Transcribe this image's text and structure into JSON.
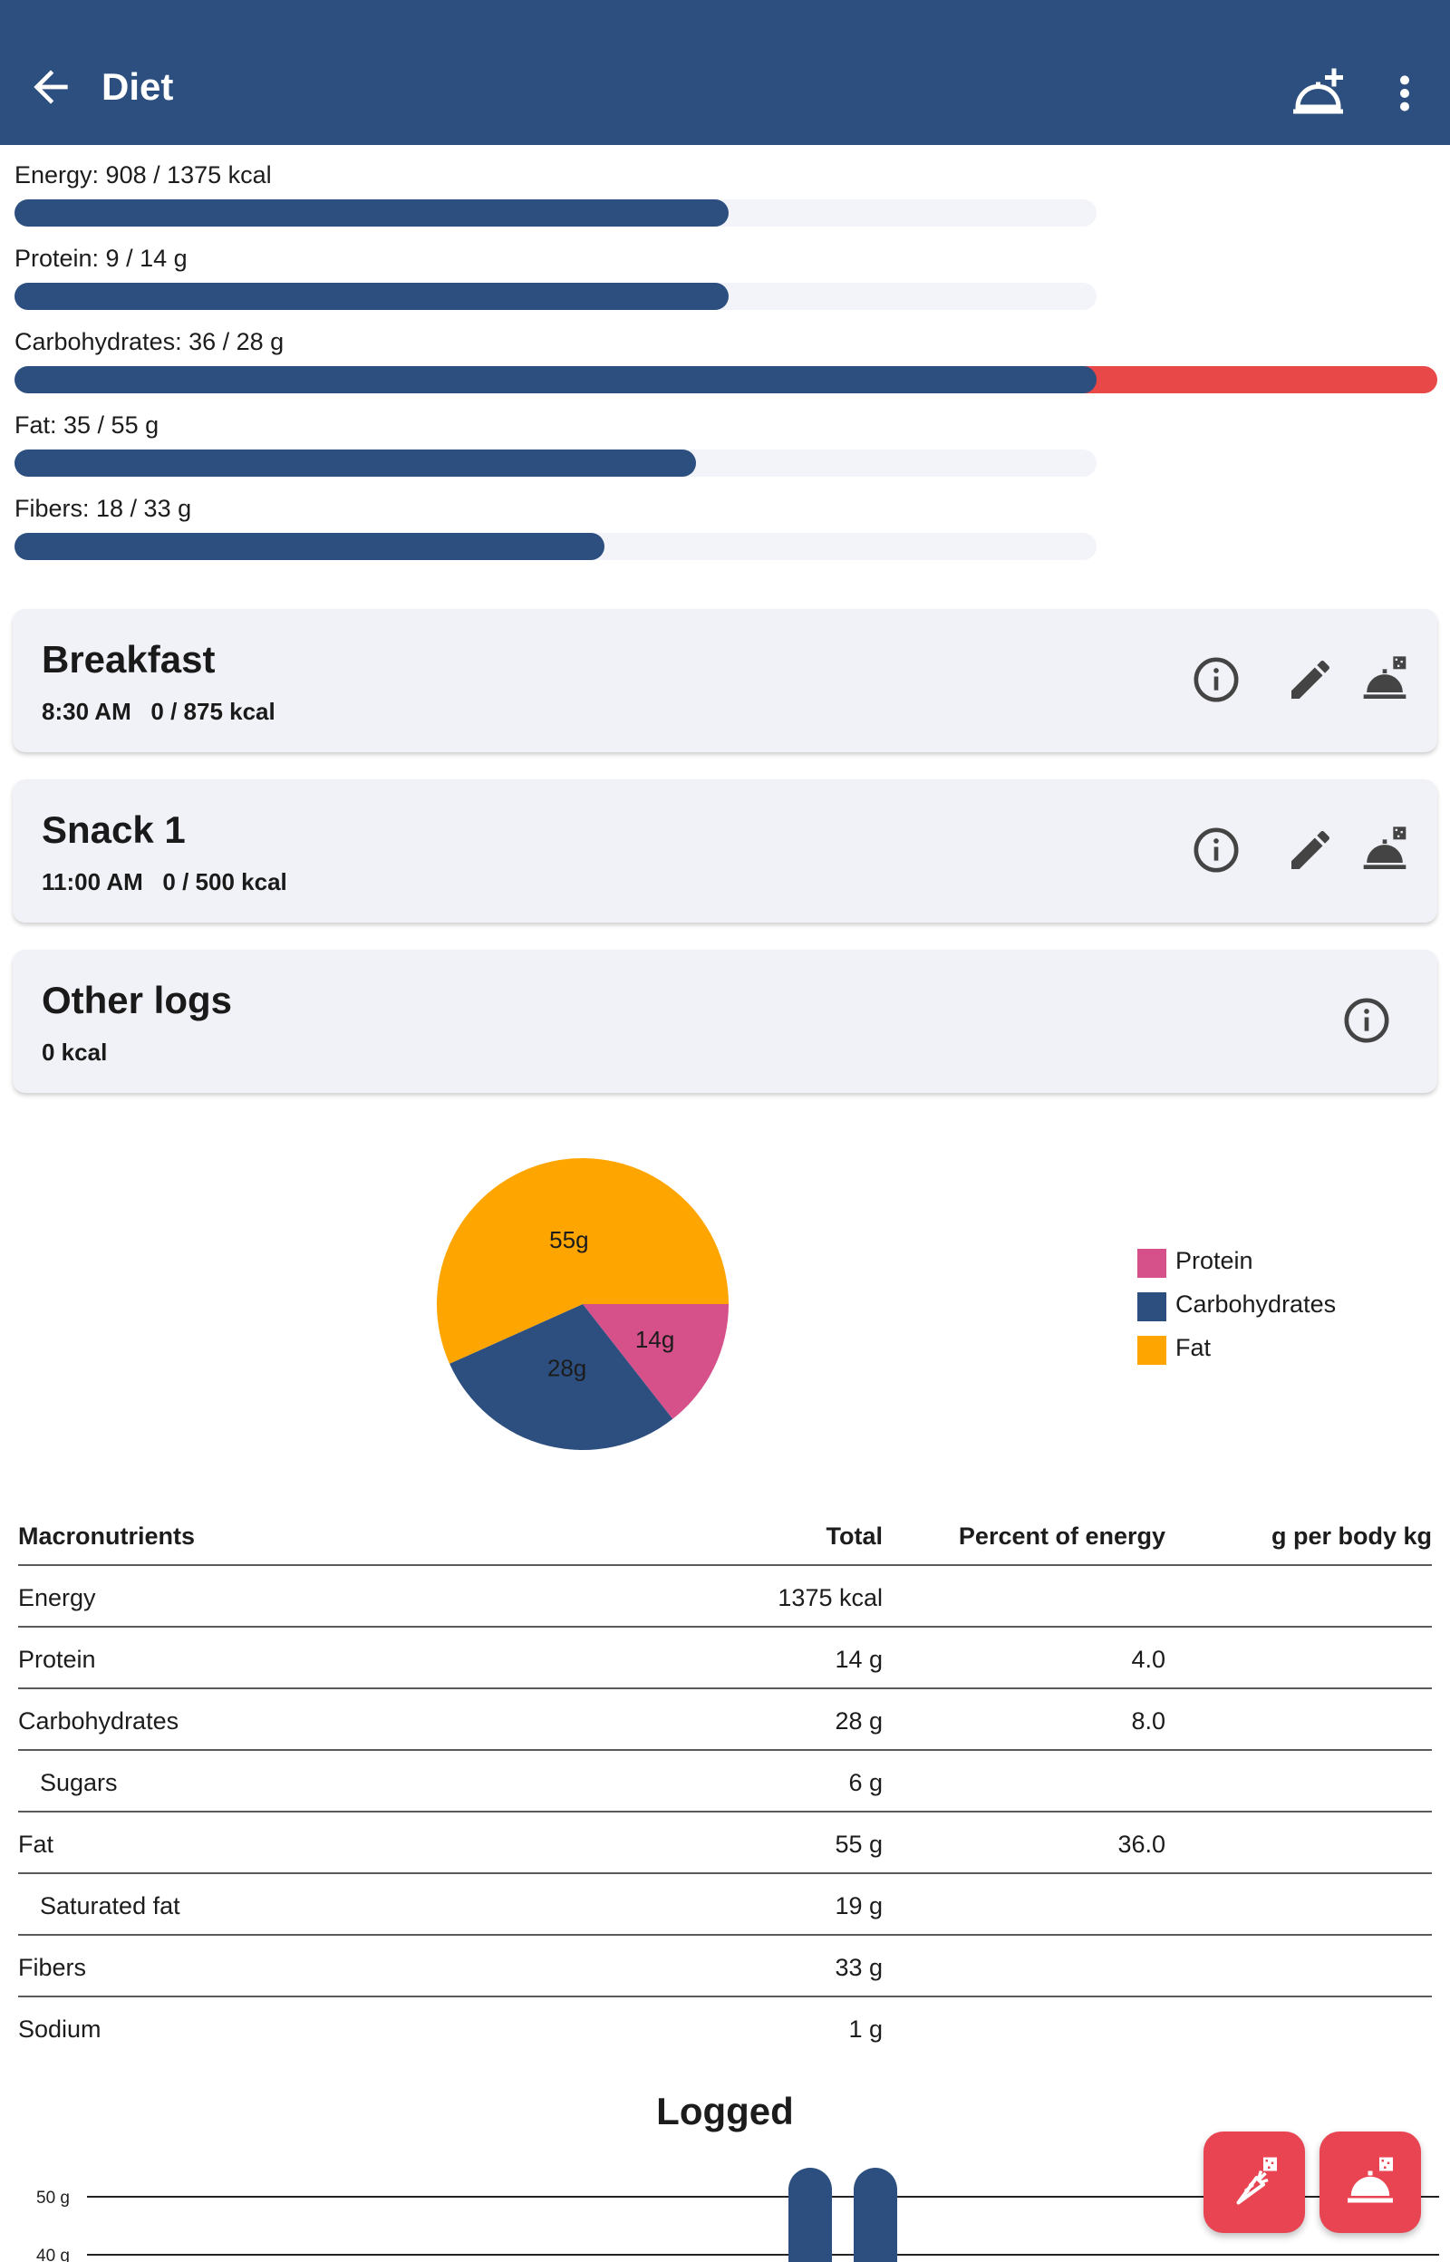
{
  "appbar": {
    "title": "Diet"
  },
  "progress": [
    {
      "label": "Energy: 908 / 1375 kcal",
      "fraction": 0.66,
      "over": 0
    },
    {
      "label": "Protein: 9 / 14 g",
      "fraction": 0.66,
      "over": 0
    },
    {
      "label": "Carbohydrates: 36 / 28 g",
      "fraction": 1.0,
      "over": 0.29
    },
    {
      "label": "Fat: 35 / 55 g",
      "fraction": 0.63,
      "over": 0
    },
    {
      "label": "Fibers: 18 / 33 g",
      "fraction": 0.545,
      "over": 0
    }
  ],
  "meals": [
    {
      "name": "Breakfast",
      "sub": "8:30 AM   0 / 875 kcal"
    },
    {
      "name": "Snack 1",
      "sub": "11:00 AM   0 / 500 kcal"
    },
    {
      "name": "Other logs",
      "sub": "0 kcal"
    }
  ],
  "chart_data": [
    {
      "type": "pie",
      "slices": [
        {
          "name": "Protein",
          "value": 14,
          "label": "14g",
          "color": "#d6508a"
        },
        {
          "name": "Carbohydrates",
          "value": 28,
          "label": "28g",
          "color": "#2c4f80"
        },
        {
          "name": "Fat",
          "value": 55,
          "label": "55g",
          "color": "#fea500"
        }
      ],
      "legend": "right"
    },
    {
      "type": "bar",
      "title": "Logged",
      "ytick_labels": [
        "50 g",
        "40 g"
      ],
      "bar_color": "#2c4f80"
    }
  ],
  "table": {
    "headers": [
      "Macronutrients",
      "Total",
      "Percent of energy",
      "g per body kg"
    ],
    "rows": [
      {
        "name": "Energy",
        "total": "1375 kcal",
        "pct": "",
        "perkg": "",
        "indent": false
      },
      {
        "name": "Protein",
        "total": "14 g",
        "pct": "4.0",
        "perkg": "",
        "indent": false
      },
      {
        "name": "Carbohydrates",
        "total": "28 g",
        "pct": "8.0",
        "perkg": "",
        "indent": false
      },
      {
        "name": "Sugars",
        "total": "6 g",
        "pct": "",
        "perkg": "",
        "indent": true
      },
      {
        "name": "Fat",
        "total": "55 g",
        "pct": "36.0",
        "perkg": "",
        "indent": false
      },
      {
        "name": "Saturated fat",
        "total": "19 g",
        "pct": "",
        "perkg": "",
        "indent": true
      },
      {
        "name": "Fibers",
        "total": "33 g",
        "pct": "",
        "perkg": "",
        "indent": false
      },
      {
        "name": "Sodium",
        "total": "1 g",
        "pct": "",
        "perkg": "",
        "indent": false
      }
    ]
  },
  "logged_title": "Logged",
  "icons": {
    "back": "arrow-left-icon",
    "add_meal": "add-meal-icon",
    "more": "more-vertical-icon",
    "info": "info-icon",
    "edit": "pencil-icon",
    "log_meal": "log-meal-icon",
    "log_ingredient": "log-ingredient-icon"
  },
  "colors": {
    "primary": "#2c4f80",
    "over": "#e84848",
    "fab": "#e84452",
    "card": "#f1f2f8"
  }
}
